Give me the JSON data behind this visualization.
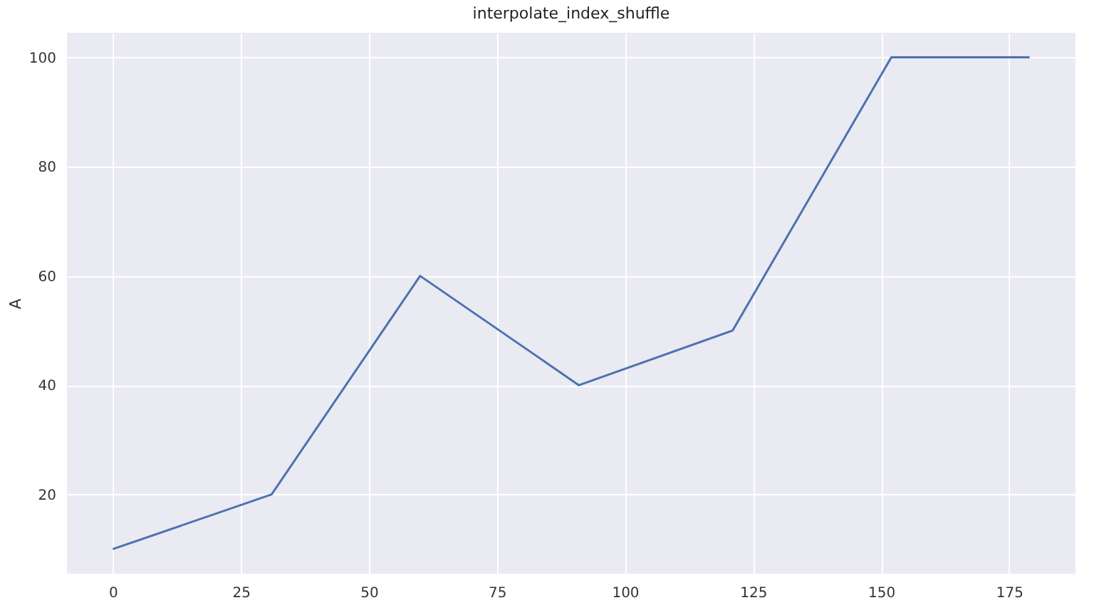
{
  "chart_data": {
    "type": "line",
    "title": "interpolate_index_shuffle",
    "ylabel": "A",
    "x": [
      0,
      31,
      60,
      91,
      121,
      152,
      179
    ],
    "series": [
      {
        "name": null,
        "color": "#4c72b0",
        "values": [
          10,
          20,
          60,
          40,
          50,
          100,
          100
        ]
      }
    ],
    "xlim": [
      -8.95,
      187.95
    ],
    "xticks": [
      0,
      25,
      50,
      75,
      100,
      125,
      150,
      175
    ],
    "ylim": [
      5.5,
      104.5
    ],
    "yticks": [
      20,
      40,
      60,
      80,
      100
    ],
    "grid": true
  }
}
